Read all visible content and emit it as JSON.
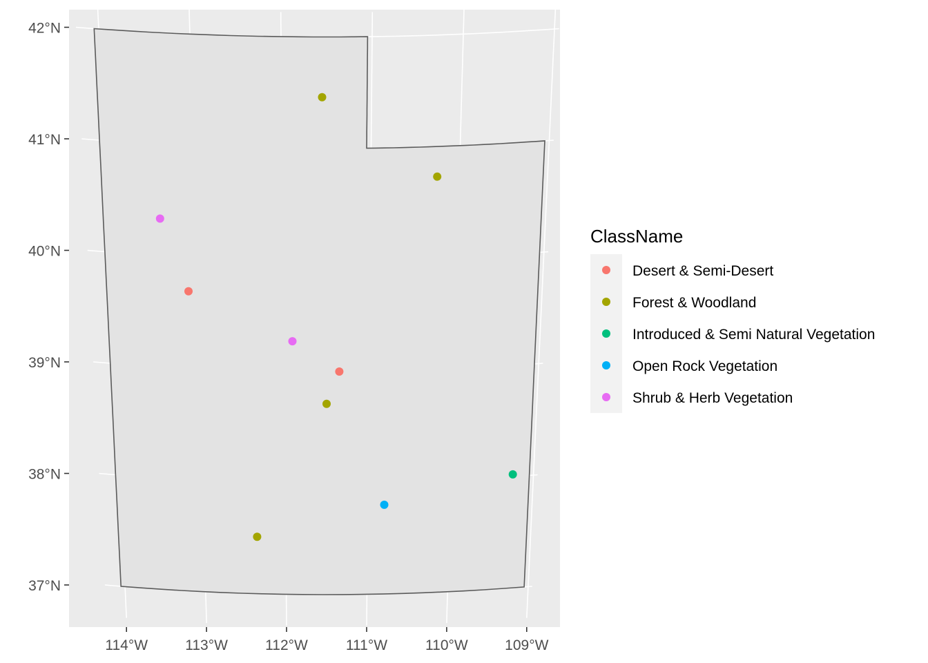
{
  "chart_data": {
    "type": "scatter",
    "title": "",
    "xlabel": "",
    "ylabel": "",
    "xlim": [
      -114.25,
      -108.95
    ],
    "ylim": [
      36.7,
      42.25
    ],
    "x_ticks": [
      {
        "value": -114,
        "label": "114°W"
      },
      {
        "value": -113,
        "label": "113°W"
      },
      {
        "value": -112,
        "label": "112°W"
      },
      {
        "value": -111,
        "label": "111°W"
      },
      {
        "value": -110,
        "label": "110°W"
      },
      {
        "value": -109,
        "label": "109°W"
      }
    ],
    "y_ticks": [
      {
        "value": 37,
        "label": "37°N"
      },
      {
        "value": 38,
        "label": "38°N"
      },
      {
        "value": 39,
        "label": "39°N"
      },
      {
        "value": 40,
        "label": "40°N"
      },
      {
        "value": 41,
        "label": "41°N"
      },
      {
        "value": 42,
        "label": "42°N"
      }
    ],
    "grid": true,
    "boundary": [
      [
        -114.05,
        42.0
      ],
      [
        -111.05,
        42.0
      ],
      [
        -111.05,
        41.0
      ],
      [
        -109.05,
        41.0
      ],
      [
        -109.05,
        37.0
      ],
      [
        -114.05,
        37.0
      ]
    ],
    "legend": {
      "title": "ClassName",
      "placement": "right",
      "entries": [
        {
          "label": "Desert & Semi-Desert",
          "color": "#F8766D"
        },
        {
          "label": "Forest & Woodland",
          "color": "#A3A500"
        },
        {
          "label": "Introduced & Semi Natural Vegetation",
          "color": "#00BF7D"
        },
        {
          "label": "Open Rock Vegetation",
          "color": "#00B0F6"
        },
        {
          "label": "Shrub & Herb Vegetation",
          "color": "#E76BF3"
        }
      ]
    },
    "points": [
      {
        "lon": -111.55,
        "lat": 41.46,
        "class": "Forest & Woodland"
      },
      {
        "lon": -110.25,
        "lat": 40.73,
        "class": "Forest & Woodland"
      },
      {
        "lon": -113.4,
        "lat": 40.33,
        "class": "Shrub & Herb Vegetation"
      },
      {
        "lon": -113.1,
        "lat": 39.69,
        "class": "Desert & Semi-Desert"
      },
      {
        "lon": -111.9,
        "lat": 39.27,
        "class": "Shrub & Herb Vegetation"
      },
      {
        "lon": -111.35,
        "lat": 39.0,
        "class": "Desert & Semi-Desert"
      },
      {
        "lon": -111.5,
        "lat": 38.71,
        "class": "Forest & Woodland"
      },
      {
        "lon": -109.25,
        "lat": 38.02,
        "class": "Introduced & Semi Natural Vegetation"
      },
      {
        "lon": -110.8,
        "lat": 37.8,
        "class": "Open Rock Vegetation"
      },
      {
        "lon": -112.35,
        "lat": 37.51,
        "class": "Forest & Woodland"
      }
    ]
  }
}
